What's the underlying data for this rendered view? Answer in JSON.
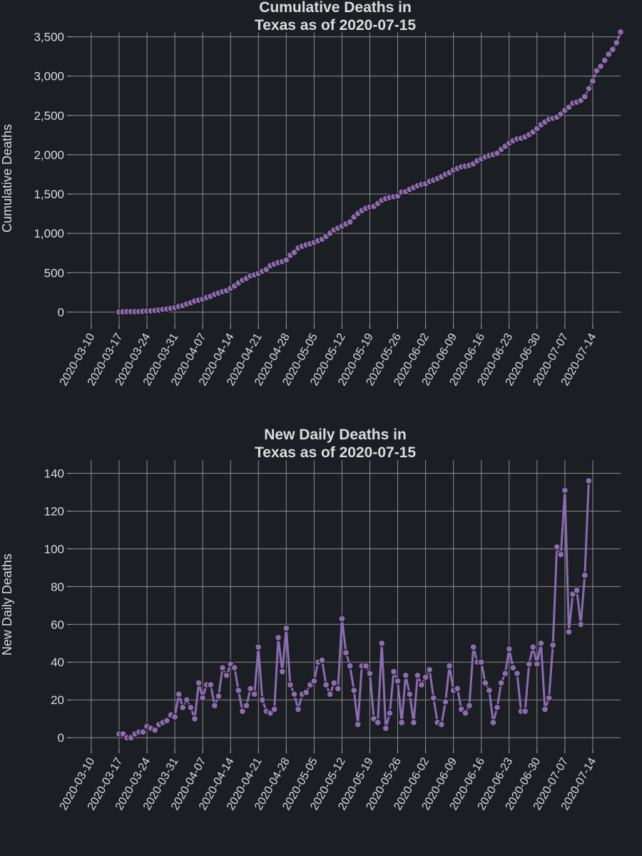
{
  "colors": {
    "background": "#1b1e23",
    "series": "#8b6bb1",
    "marker_edge": "#1a1a1a",
    "grid": "#8a8d92",
    "text": "#dcdcdc"
  },
  "chart_data": [
    {
      "type": "line",
      "title": [
        "Cumulative Deaths in",
        "Texas as of 2020-07-15"
      ],
      "ylabel": "Cumulative Deaths",
      "xlabel": "",
      "ylim": [
        -160,
        3560
      ],
      "yticks": [
        0,
        500,
        1000,
        1500,
        2000,
        2500,
        3000,
        3500
      ],
      "ytick_labels": [
        "0",
        "500",
        "1,000",
        "1,500",
        "2,000",
        "2,500",
        "3,000",
        "3,500"
      ],
      "xlim": [
        "2020-03-05",
        "2020-07-21"
      ],
      "xticks": [
        "2020-03-10",
        "2020-03-17",
        "2020-03-24",
        "2020-03-31",
        "2020-04-07",
        "2020-04-14",
        "2020-04-21",
        "2020-04-28",
        "2020-05-05",
        "2020-05-12",
        "2020-05-19",
        "2020-05-26",
        "2020-06-02",
        "2020-06-09",
        "2020-06-16",
        "2020-06-23",
        "2020-06-30",
        "2020-07-07",
        "2020-07-14"
      ],
      "grid": true,
      "x_start": "2020-03-17",
      "values": [
        0,
        2,
        4,
        4,
        4,
        6,
        9,
        12,
        15,
        21,
        25,
        32,
        38,
        47,
        56,
        71,
        82,
        102,
        118,
        140,
        152,
        163,
        184,
        199,
        225,
        243,
        259,
        273,
        302,
        331,
        370,
        405,
        429,
        459,
        473,
        491,
        518,
        540,
        589,
        609,
        629,
        640,
        661,
        721,
        757,
        814,
        837,
        854,
        869,
        883,
        907,
        926,
        961,
        1002,
        1043,
        1068,
        1093,
        1119,
        1146,
        1209,
        1253,
        1291,
        1319,
        1336,
        1343,
        1381,
        1421,
        1442,
        1457,
        1468,
        1475,
        1525,
        1530,
        1560,
        1583,
        1607,
        1623,
        1631,
        1663,
        1677,
        1698,
        1722,
        1752,
        1773,
        1805,
        1826,
        1847,
        1855,
        1866,
        1885,
        1923,
        1948,
        1974,
        1990,
        2003,
        2020,
        2068,
        2108,
        2148,
        2177,
        2202,
        2210,
        2227,
        2256,
        2290,
        2334,
        2381,
        2417,
        2451,
        2465,
        2479,
        2518,
        2566,
        2605,
        2655,
        2670,
        2691,
        2740,
        2841,
        2938,
        3069,
        3125,
        3201,
        3279,
        3339,
        3425,
        3561
      ]
    },
    {
      "type": "line",
      "title": [
        "New Daily Deaths in",
        "Texas as of 2020-07-15"
      ],
      "ylabel": "New Daily Deaths",
      "xlabel": "",
      "ylim": [
        -6,
        147
      ],
      "yticks": [
        0,
        20,
        40,
        60,
        80,
        100,
        120,
        140
      ],
      "ytick_labels": [
        "0",
        "20",
        "40",
        "60",
        "80",
        "100",
        "120",
        "140"
      ],
      "xlim": [
        "2020-03-05",
        "2020-07-21"
      ],
      "xticks": [
        "2020-03-10",
        "2020-03-17",
        "2020-03-24",
        "2020-03-31",
        "2020-04-07",
        "2020-04-14",
        "2020-04-21",
        "2020-04-28",
        "2020-05-05",
        "2020-05-12",
        "2020-05-19",
        "2020-05-26",
        "2020-06-02",
        "2020-06-09",
        "2020-06-16",
        "2020-06-23",
        "2020-06-30",
        "2020-07-07",
        "2020-07-14"
      ],
      "grid": true,
      "x_start": "2020-03-17",
      "values": [
        2,
        2,
        0,
        0,
        2,
        3,
        3,
        6,
        5,
        4,
        7,
        8,
        9,
        12,
        11,
        23,
        16,
        20,
        16,
        10,
        29,
        21,
        28,
        28,
        17,
        22,
        37,
        33,
        39,
        37,
        25,
        14,
        17,
        26,
        23,
        48,
        20,
        14,
        13,
        15,
        53,
        35,
        58,
        28,
        23,
        15,
        23,
        24,
        28,
        30,
        40,
        41,
        28,
        23,
        29,
        26,
        63,
        45,
        38,
        25,
        7,
        38,
        38,
        34,
        10,
        8,
        50,
        5,
        13,
        35,
        30,
        8,
        33,
        23,
        8,
        33,
        28,
        32,
        36,
        21,
        8,
        7,
        19,
        38,
        25,
        26,
        15,
        13,
        17,
        48,
        40,
        40,
        29,
        25,
        8,
        16,
        29,
        34,
        47,
        37,
        34,
        14,
        14,
        39,
        48,
        39,
        50,
        15,
        21,
        49,
        101,
        97,
        131,
        56,
        76,
        78,
        60,
        86,
        136
      ]
    }
  ]
}
